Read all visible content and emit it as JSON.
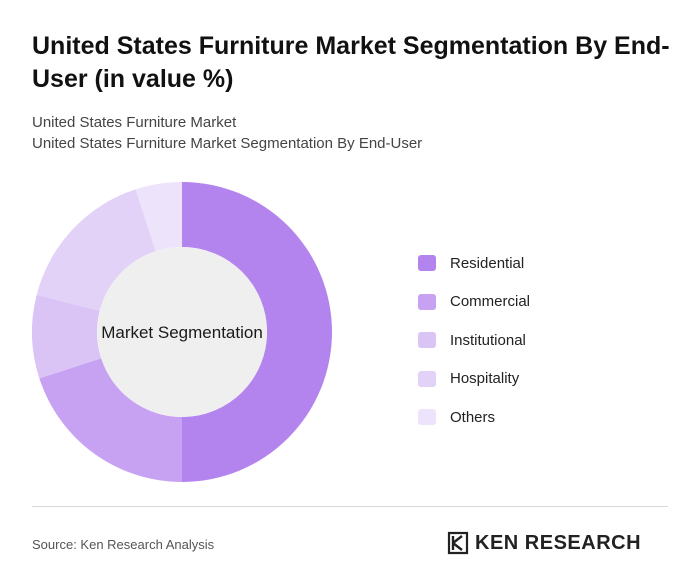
{
  "header": {
    "title": "United States Furniture Market Segmentation By End-User (in value %)",
    "subtitle1": "United States Furniture Market",
    "subtitle2": "United States Furniture Market Segmentation By End-User"
  },
  "chart_data": {
    "type": "pie",
    "center_label": "Market Segmentation",
    "categories": [
      "Residential",
      "Commercial",
      "Institutional",
      "Hospitality",
      "Others"
    ],
    "values": [
      50,
      20,
      9,
      16,
      5
    ],
    "colors": [
      "#b484ee",
      "#c7a2f2",
      "#dac4f6",
      "#e2d2f8",
      "#ede3fa"
    ],
    "legend_position": "right"
  },
  "footer": {
    "source": "Source: Ken Research Analysis",
    "brand": "KEN RESEARCH"
  }
}
